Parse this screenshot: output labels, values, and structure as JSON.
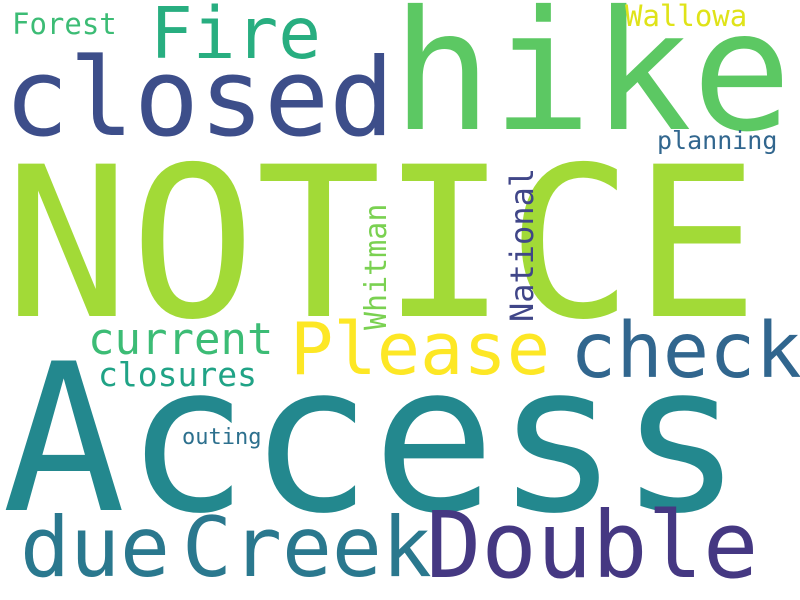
{
  "words": {
    "notice": {
      "text": "NOTICE",
      "color": "#a2da37"
    },
    "access": {
      "text": "Access",
      "color": "#23888e"
    },
    "hike": {
      "text": "hike",
      "color": "#5cc863"
    },
    "closed": {
      "text": "closed",
      "color": "#3d4e8a"
    },
    "double": {
      "text": "Double",
      "color": "#453882"
    },
    "creek": {
      "text": "Creek",
      "color": "#2a788e"
    },
    "due": {
      "text": "due",
      "color": "#2a788e"
    },
    "please": {
      "text": "Please",
      "color": "#fde725"
    },
    "check": {
      "text": "check",
      "color": "#31668e"
    },
    "fire": {
      "text": "Fire",
      "color": "#28ae80"
    },
    "current": {
      "text": "current",
      "color": "#3cbc75"
    },
    "closures": {
      "text": "closures",
      "color": "#20a386"
    },
    "national": {
      "text": "National",
      "color": "#404688"
    },
    "whitman": {
      "text": "Whitman",
      "color": "#7ad151"
    },
    "wallowa": {
      "text": "Wallowa",
      "color": "#dfe318"
    },
    "forest": {
      "text": "Forest",
      "color": "#3cbc75"
    },
    "planning": {
      "text": "planning",
      "color": "#31668e"
    },
    "outing": {
      "text": "outing",
      "color": "#2d708e"
    }
  }
}
